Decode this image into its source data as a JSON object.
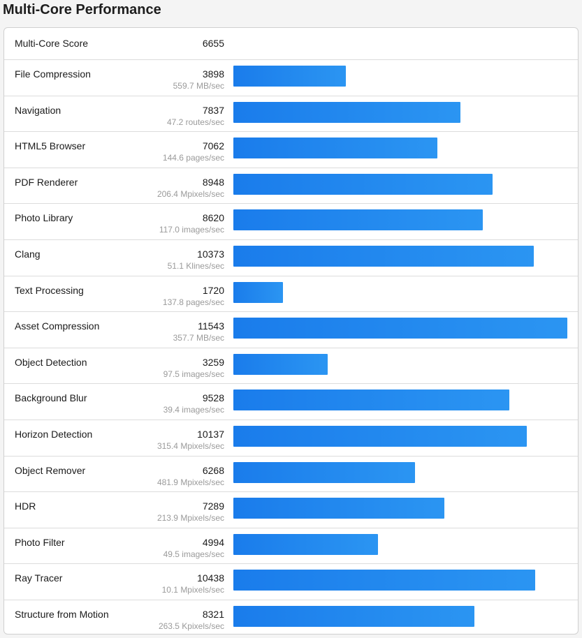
{
  "title": "Multi-Core Performance",
  "summary": {
    "label": "Multi-Core Score",
    "score": "6655"
  },
  "max_score": 11543,
  "colors": {
    "bar_start": "#1a7ceb",
    "bar_end": "#2b95f2",
    "rate_text": "#9a9a9a"
  },
  "benchmarks": [
    {
      "name": "File Compression",
      "score": "3898",
      "rate": "559.7 MB/sec"
    },
    {
      "name": "Navigation",
      "score": "7837",
      "rate": "47.2 routes/sec"
    },
    {
      "name": "HTML5 Browser",
      "score": "7062",
      "rate": "144.6 pages/sec"
    },
    {
      "name": "PDF Renderer",
      "score": "8948",
      "rate": "206.4 Mpixels/sec"
    },
    {
      "name": "Photo Library",
      "score": "8620",
      "rate": "117.0 images/sec"
    },
    {
      "name": "Clang",
      "score": "10373",
      "rate": "51.1 Klines/sec"
    },
    {
      "name": "Text Processing",
      "score": "1720",
      "rate": "137.8 pages/sec"
    },
    {
      "name": "Asset Compression",
      "score": "11543",
      "rate": "357.7 MB/sec"
    },
    {
      "name": "Object Detection",
      "score": "3259",
      "rate": "97.5 images/sec"
    },
    {
      "name": "Background Blur",
      "score": "9528",
      "rate": "39.4 images/sec"
    },
    {
      "name": "Horizon Detection",
      "score": "10137",
      "rate": "315.4 Mpixels/sec"
    },
    {
      "name": "Object Remover",
      "score": "6268",
      "rate": "481.9 Mpixels/sec"
    },
    {
      "name": "HDR",
      "score": "7289",
      "rate": "213.9 Mpixels/sec"
    },
    {
      "name": "Photo Filter",
      "score": "4994",
      "rate": "49.5 images/sec"
    },
    {
      "name": "Ray Tracer",
      "score": "10438",
      "rate": "10.1 Mpixels/sec"
    },
    {
      "name": "Structure from Motion",
      "score": "8321",
      "rate": "263.5 Kpixels/sec"
    }
  ]
}
